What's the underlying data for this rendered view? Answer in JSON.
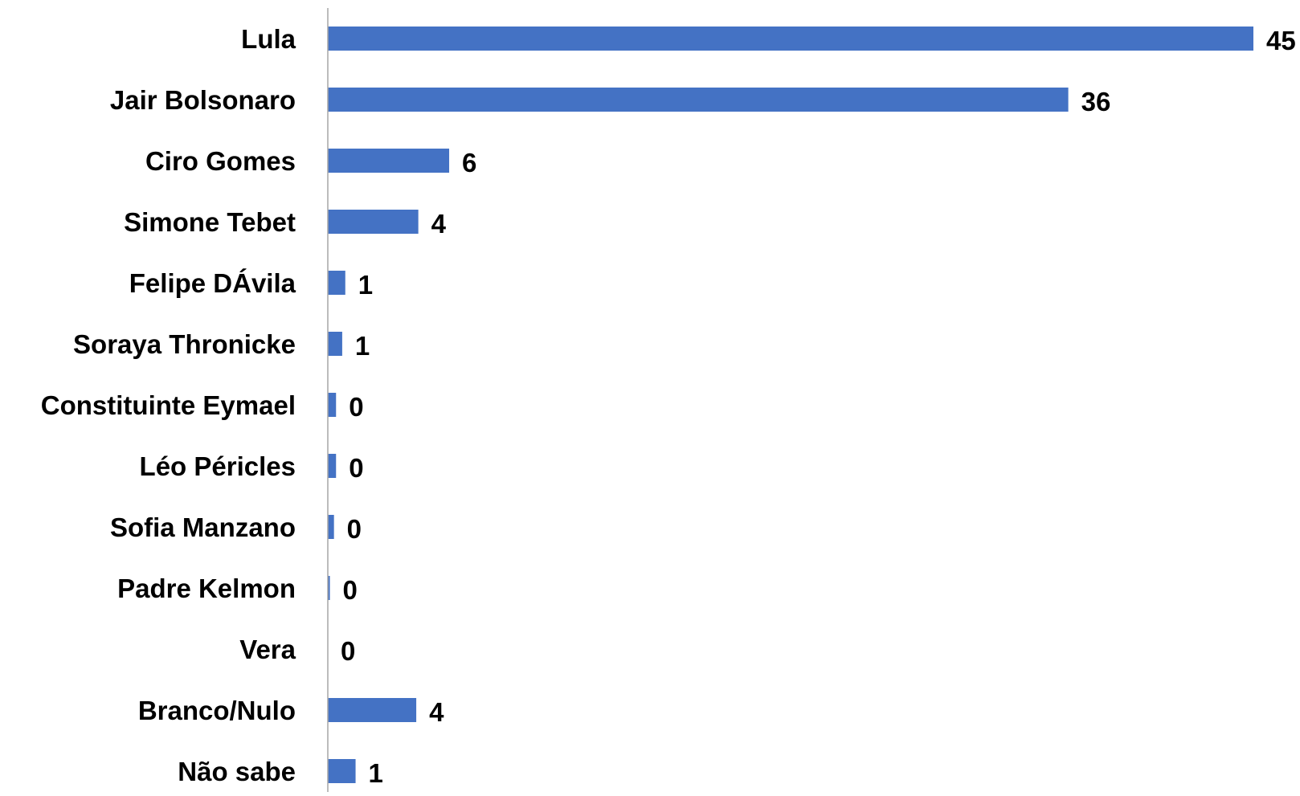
{
  "chart_data": {
    "type": "bar",
    "orientation": "horizontal",
    "categories": [
      "Lula",
      "Jair Bolsonaro",
      "Ciro Gomes",
      "Simone Tebet",
      "Felipe DÁvila",
      "Soraya Thronicke",
      "Constituinte Eymael",
      "Léo Péricles",
      "Sofia Manzano",
      "Padre Kelmon",
      "Vera",
      "Branco/Nulo",
      "Não sabe"
    ],
    "values": [
      45,
      36,
      6,
      4,
      1,
      1,
      0,
      0,
      0,
      0,
      0,
      4,
      1
    ],
    "bar_values": [
      45,
      36,
      5.9,
      4.4,
      0.85,
      0.7,
      0.4,
      0.4,
      0.3,
      0.1,
      0,
      4.3,
      1.35
    ],
    "data_labels": [
      "45",
      "36",
      "6",
      "4",
      "1",
      "1",
      "0",
      "0",
      "0",
      "0",
      "0",
      "4",
      "1"
    ],
    "xlim": [
      0,
      45
    ],
    "title": "",
    "xlabel": "",
    "ylabel": "",
    "grid": false,
    "legend": "none",
    "bar_color": "#4472c4",
    "axis_color": "#a6a6a6"
  }
}
